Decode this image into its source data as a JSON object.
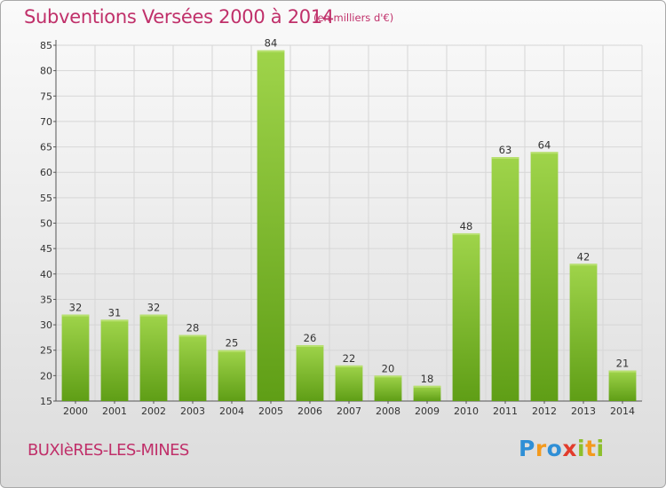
{
  "header": {
    "title": "Subventions Versées 2000 à 2014",
    "unit": "(en milliers d'€)"
  },
  "footer": {
    "commune": "BUXIèRES-LES-MINES",
    "logo": "Proxiti"
  },
  "colors": {
    "title": "#c0306a",
    "bar_top": "#9fd44a",
    "bar_bottom": "#5f9e16",
    "grid": "#d6d6d6"
  },
  "chart_data": {
    "type": "bar",
    "title": "Subventions Versées 2000 à 2014",
    "subtitle": "(en milliers d'€)",
    "categories": [
      "2000",
      "2001",
      "2002",
      "2003",
      "2004",
      "2005",
      "2006",
      "2007",
      "2008",
      "2009",
      "2010",
      "2011",
      "2012",
      "2013",
      "2014"
    ],
    "values": [
      32,
      31,
      32,
      28,
      25,
      84,
      26,
      22,
      20,
      18,
      48,
      63,
      64,
      42,
      21
    ],
    "ylim": [
      15,
      85
    ],
    "yticks": [
      15,
      20,
      25,
      30,
      35,
      40,
      45,
      50,
      55,
      60,
      65,
      70,
      75,
      80,
      85
    ],
    "grid": true,
    "data_labels": true
  }
}
